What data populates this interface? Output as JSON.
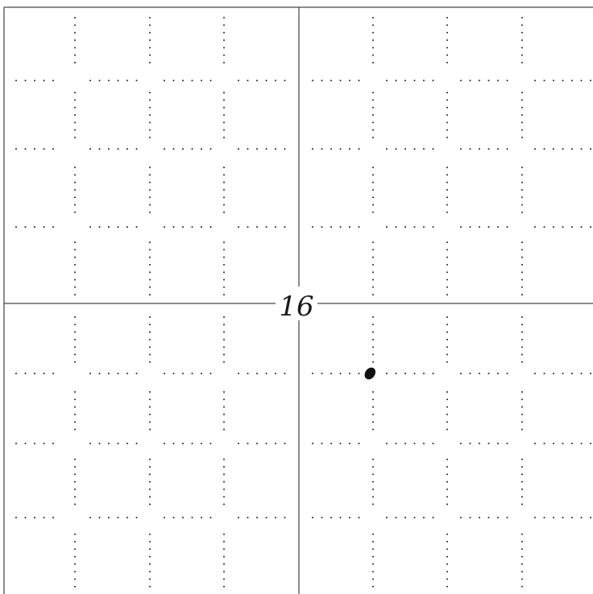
{
  "grid_label": "16",
  "colors": {
    "background": "#ffffff",
    "ink": "#1a1a1a"
  },
  "marked_point": {
    "x_units": 1,
    "y_units": -1
  }
}
